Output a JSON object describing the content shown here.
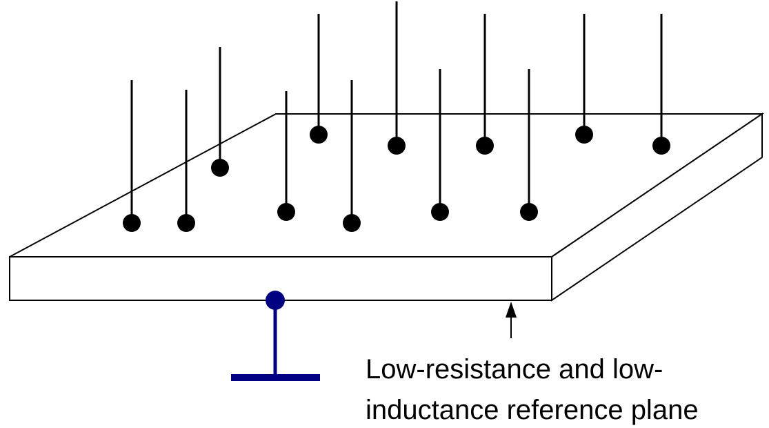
{
  "caption": {
    "lines": [
      "Low-resistance and low-",
      "inductance reference plane"
    ]
  }
}
